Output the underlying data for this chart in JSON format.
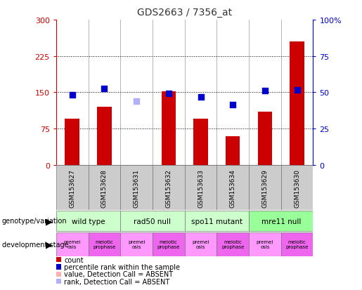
{
  "title": "GDS2663 / 7356_at",
  "samples": [
    "GSM153627",
    "GSM153628",
    "GSM153631",
    "GSM153632",
    "GSM153633",
    "GSM153634",
    "GSM153629",
    "GSM153630"
  ],
  "bar_values": [
    95,
    120,
    null,
    152,
    95,
    60,
    110,
    255
  ],
  "bar_colors": [
    "#cc0000",
    "#cc0000",
    "#ffb0b0",
    "#cc0000",
    "#cc0000",
    "#cc0000",
    "#cc0000",
    "#cc0000"
  ],
  "dot_values": [
    145,
    158,
    132,
    148,
    140,
    125,
    153,
    155
  ],
  "dot_absent": [
    false,
    false,
    true,
    false,
    false,
    false,
    false,
    false
  ],
  "ylim_left": [
    0,
    300
  ],
  "ylim_right": [
    0,
    100
  ],
  "yticks_left": [
    0,
    75,
    150,
    225,
    300
  ],
  "yticks_right": [
    0,
    25,
    50,
    75,
    100
  ],
  "ytick_labels_left": [
    "0",
    "75",
    "150",
    "225",
    "300"
  ],
  "ytick_labels_right": [
    "0",
    "25",
    "50",
    "75",
    "100%"
  ],
  "grid_values": [
    75,
    150,
    225
  ],
  "genotype_groups": [
    {
      "label": "wild type",
      "start": 0,
      "end": 2,
      "color": "#ccffcc"
    },
    {
      "label": "rad50 null",
      "start": 2,
      "end": 4,
      "color": "#ccffcc"
    },
    {
      "label": "spo11 mutant",
      "start": 4,
      "end": 6,
      "color": "#ccffcc"
    },
    {
      "label": "mre11 null",
      "start": 6,
      "end": 8,
      "color": "#99ff99"
    }
  ],
  "dev_stage_groups": [
    {
      "label": "premei\nosis",
      "color": "#ff99ff"
    },
    {
      "label": "meiotic\nprophase",
      "color": "#ee66ee"
    },
    {
      "label": "premei\nosis",
      "color": "#ff99ff"
    },
    {
      "label": "meiotic\nprophase",
      "color": "#ee66ee"
    },
    {
      "label": "premei\nosis",
      "color": "#ff99ff"
    },
    {
      "label": "meiotic\nprophase",
      "color": "#ee66ee"
    },
    {
      "label": "premei\nosis",
      "color": "#ff99ff"
    },
    {
      "label": "meiotic\nprophase",
      "color": "#ee66ee"
    }
  ],
  "legend_items": [
    {
      "label": "count",
      "color": "#cc0000"
    },
    {
      "label": "percentile rank within the sample",
      "color": "#0000cc"
    },
    {
      "label": "value, Detection Call = ABSENT",
      "color": "#ffb0b0"
    },
    {
      "label": "rank, Detection Call = ABSENT",
      "color": "#b0b0ff"
    }
  ],
  "bar_width": 0.45,
  "dot_size": 35,
  "left_axis_color": "#cc0000",
  "right_axis_color": "#0000cc",
  "background_color": "#ffffff",
  "sample_bg_color": "#cccccc",
  "grid_color": "#000000"
}
